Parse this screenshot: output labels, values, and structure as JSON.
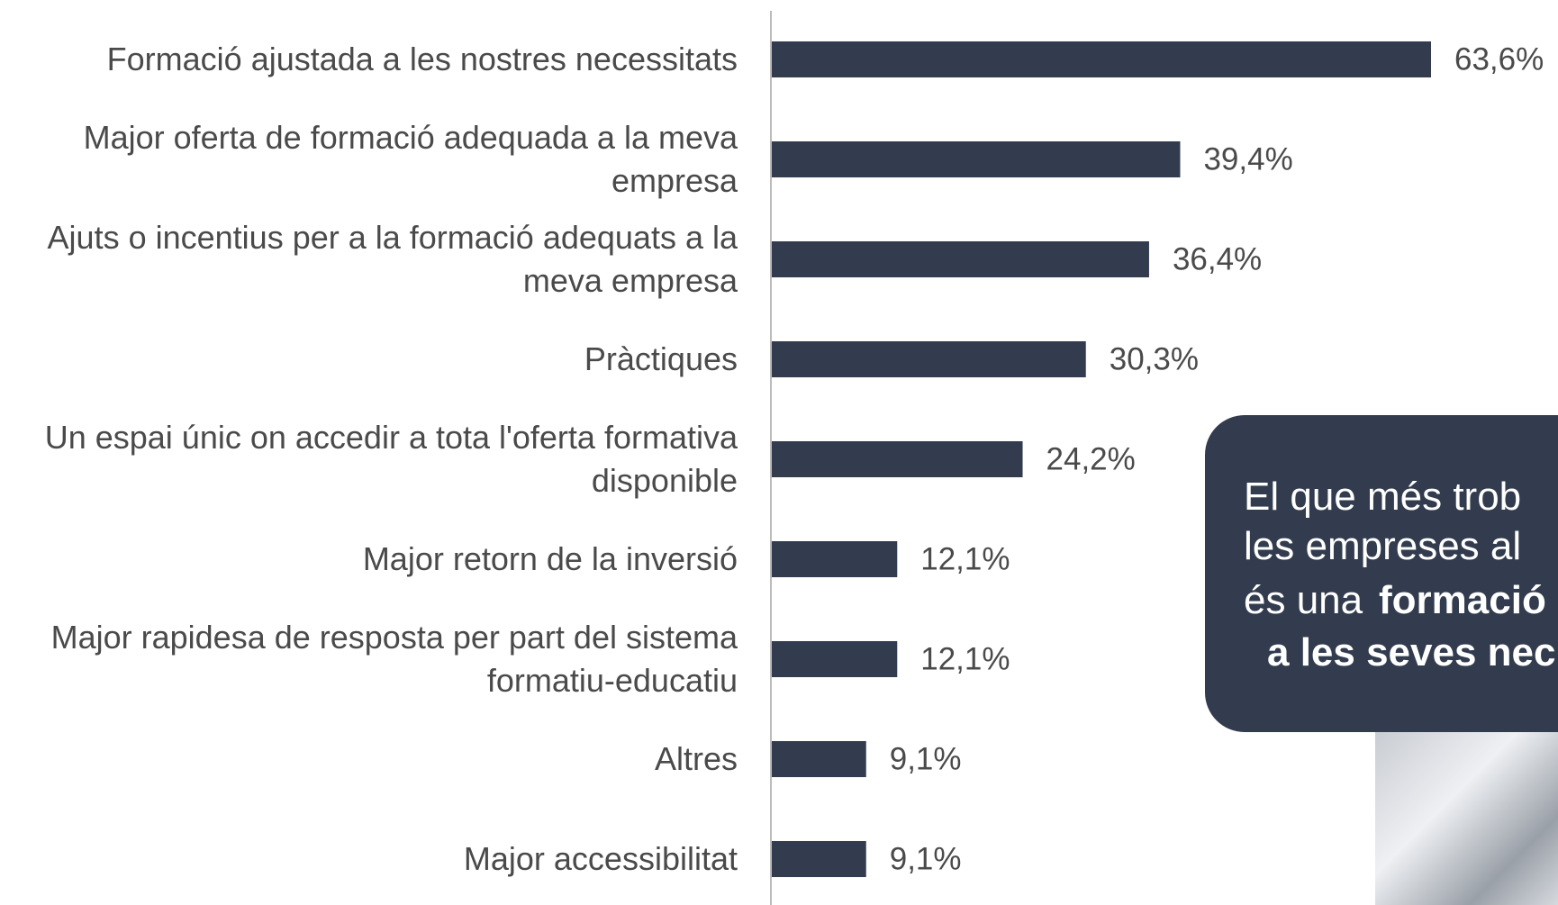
{
  "chart_data": {
    "type": "bar",
    "orientation": "horizontal",
    "categories": [
      "Formació ajustada a les nostres necessitats",
      "Major oferta de formació adequada a la meva empresa",
      "Ajuts o incentius per a la formació adequats a la meva empresa",
      "Pràctiques",
      "Un espai únic on accedir a tota l'oferta formativa disponible",
      "Major retorn de la inversió",
      "Major rapidesa de resposta per part del sistema formatiu-educatiu",
      "Altres",
      "Major accessibilitat"
    ],
    "values": [
      63.6,
      39.4,
      36.4,
      30.3,
      24.2,
      12.1,
      12.1,
      9.1,
      9.1
    ],
    "value_labels": [
      "63,6%",
      "39,4%",
      "36,4%",
      "30,3%",
      "24,2%",
      "12,1%",
      "12,1%",
      "9,1%",
      "9,1%"
    ],
    "color": "#323c4e"
  },
  "callout": {
    "lines": [
      "El que més trob",
      "les empreses al",
      "és una",
      "formació",
      "a les seves nec"
    ]
  }
}
